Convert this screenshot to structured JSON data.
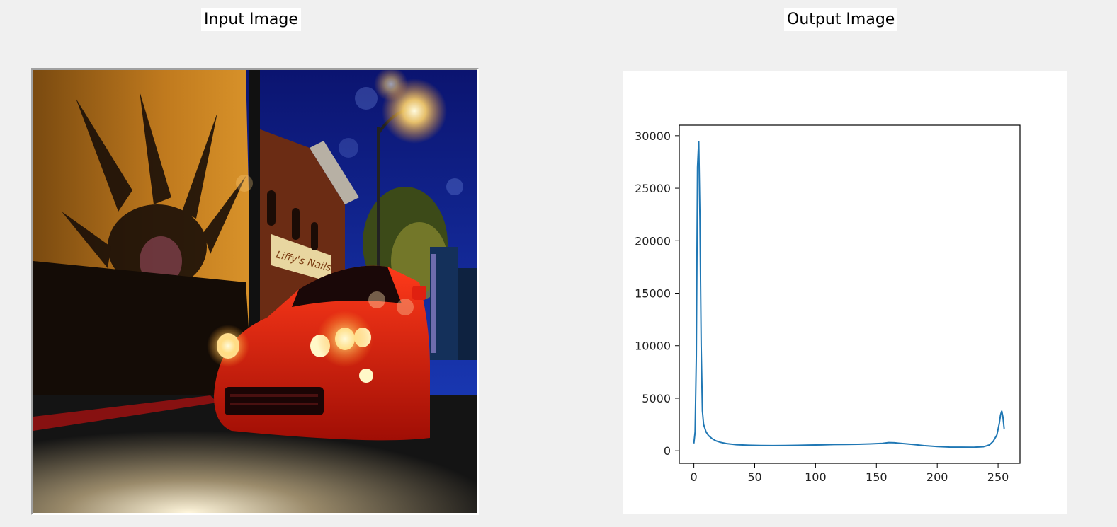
{
  "captions": {
    "input": "Input Image",
    "output": "Output Image"
  },
  "photo": {
    "scene": "night street with red sports car",
    "sign_text": "Liffy's Nails"
  },
  "colors": {
    "background": "#f0f0f0",
    "line": "#1f77b4",
    "car": "#d81e0e",
    "sky": "#0a1a8a"
  },
  "chart_data": {
    "type": "line",
    "title": "",
    "xlabel": "",
    "ylabel": "",
    "xlim": [
      -12,
      268
    ],
    "ylim": [
      -1200,
      31000
    ],
    "xticks": [
      0,
      50,
      100,
      150,
      200,
      250
    ],
    "yticks": [
      0,
      5000,
      10000,
      15000,
      20000,
      25000,
      30000
    ],
    "grid": false,
    "series": [
      {
        "x": [
          0,
          1,
          2,
          3,
          4,
          5,
          6,
          7,
          8,
          10,
          12,
          15,
          18,
          22,
          27,
          35,
          45,
          55,
          65,
          75,
          85,
          95,
          105,
          115,
          125,
          135,
          145,
          155,
          160,
          165,
          170,
          180,
          190,
          200,
          210,
          220,
          230,
          238,
          243,
          246,
          249,
          251,
          252,
          253,
          254,
          255
        ],
        "values": [
          700,
          1800,
          9000,
          27000,
          29500,
          22000,
          10000,
          3800,
          2500,
          1800,
          1450,
          1150,
          950,
          800,
          680,
          580,
          530,
          500,
          490,
          500,
          520,
          540,
          560,
          590,
          600,
          620,
          650,
          700,
          780,
          760,
          700,
          600,
          480,
          400,
          350,
          340,
          330,
          380,
          560,
          900,
          1500,
          2600,
          3400,
          3800,
          3200,
          2100
        ]
      }
    ]
  }
}
